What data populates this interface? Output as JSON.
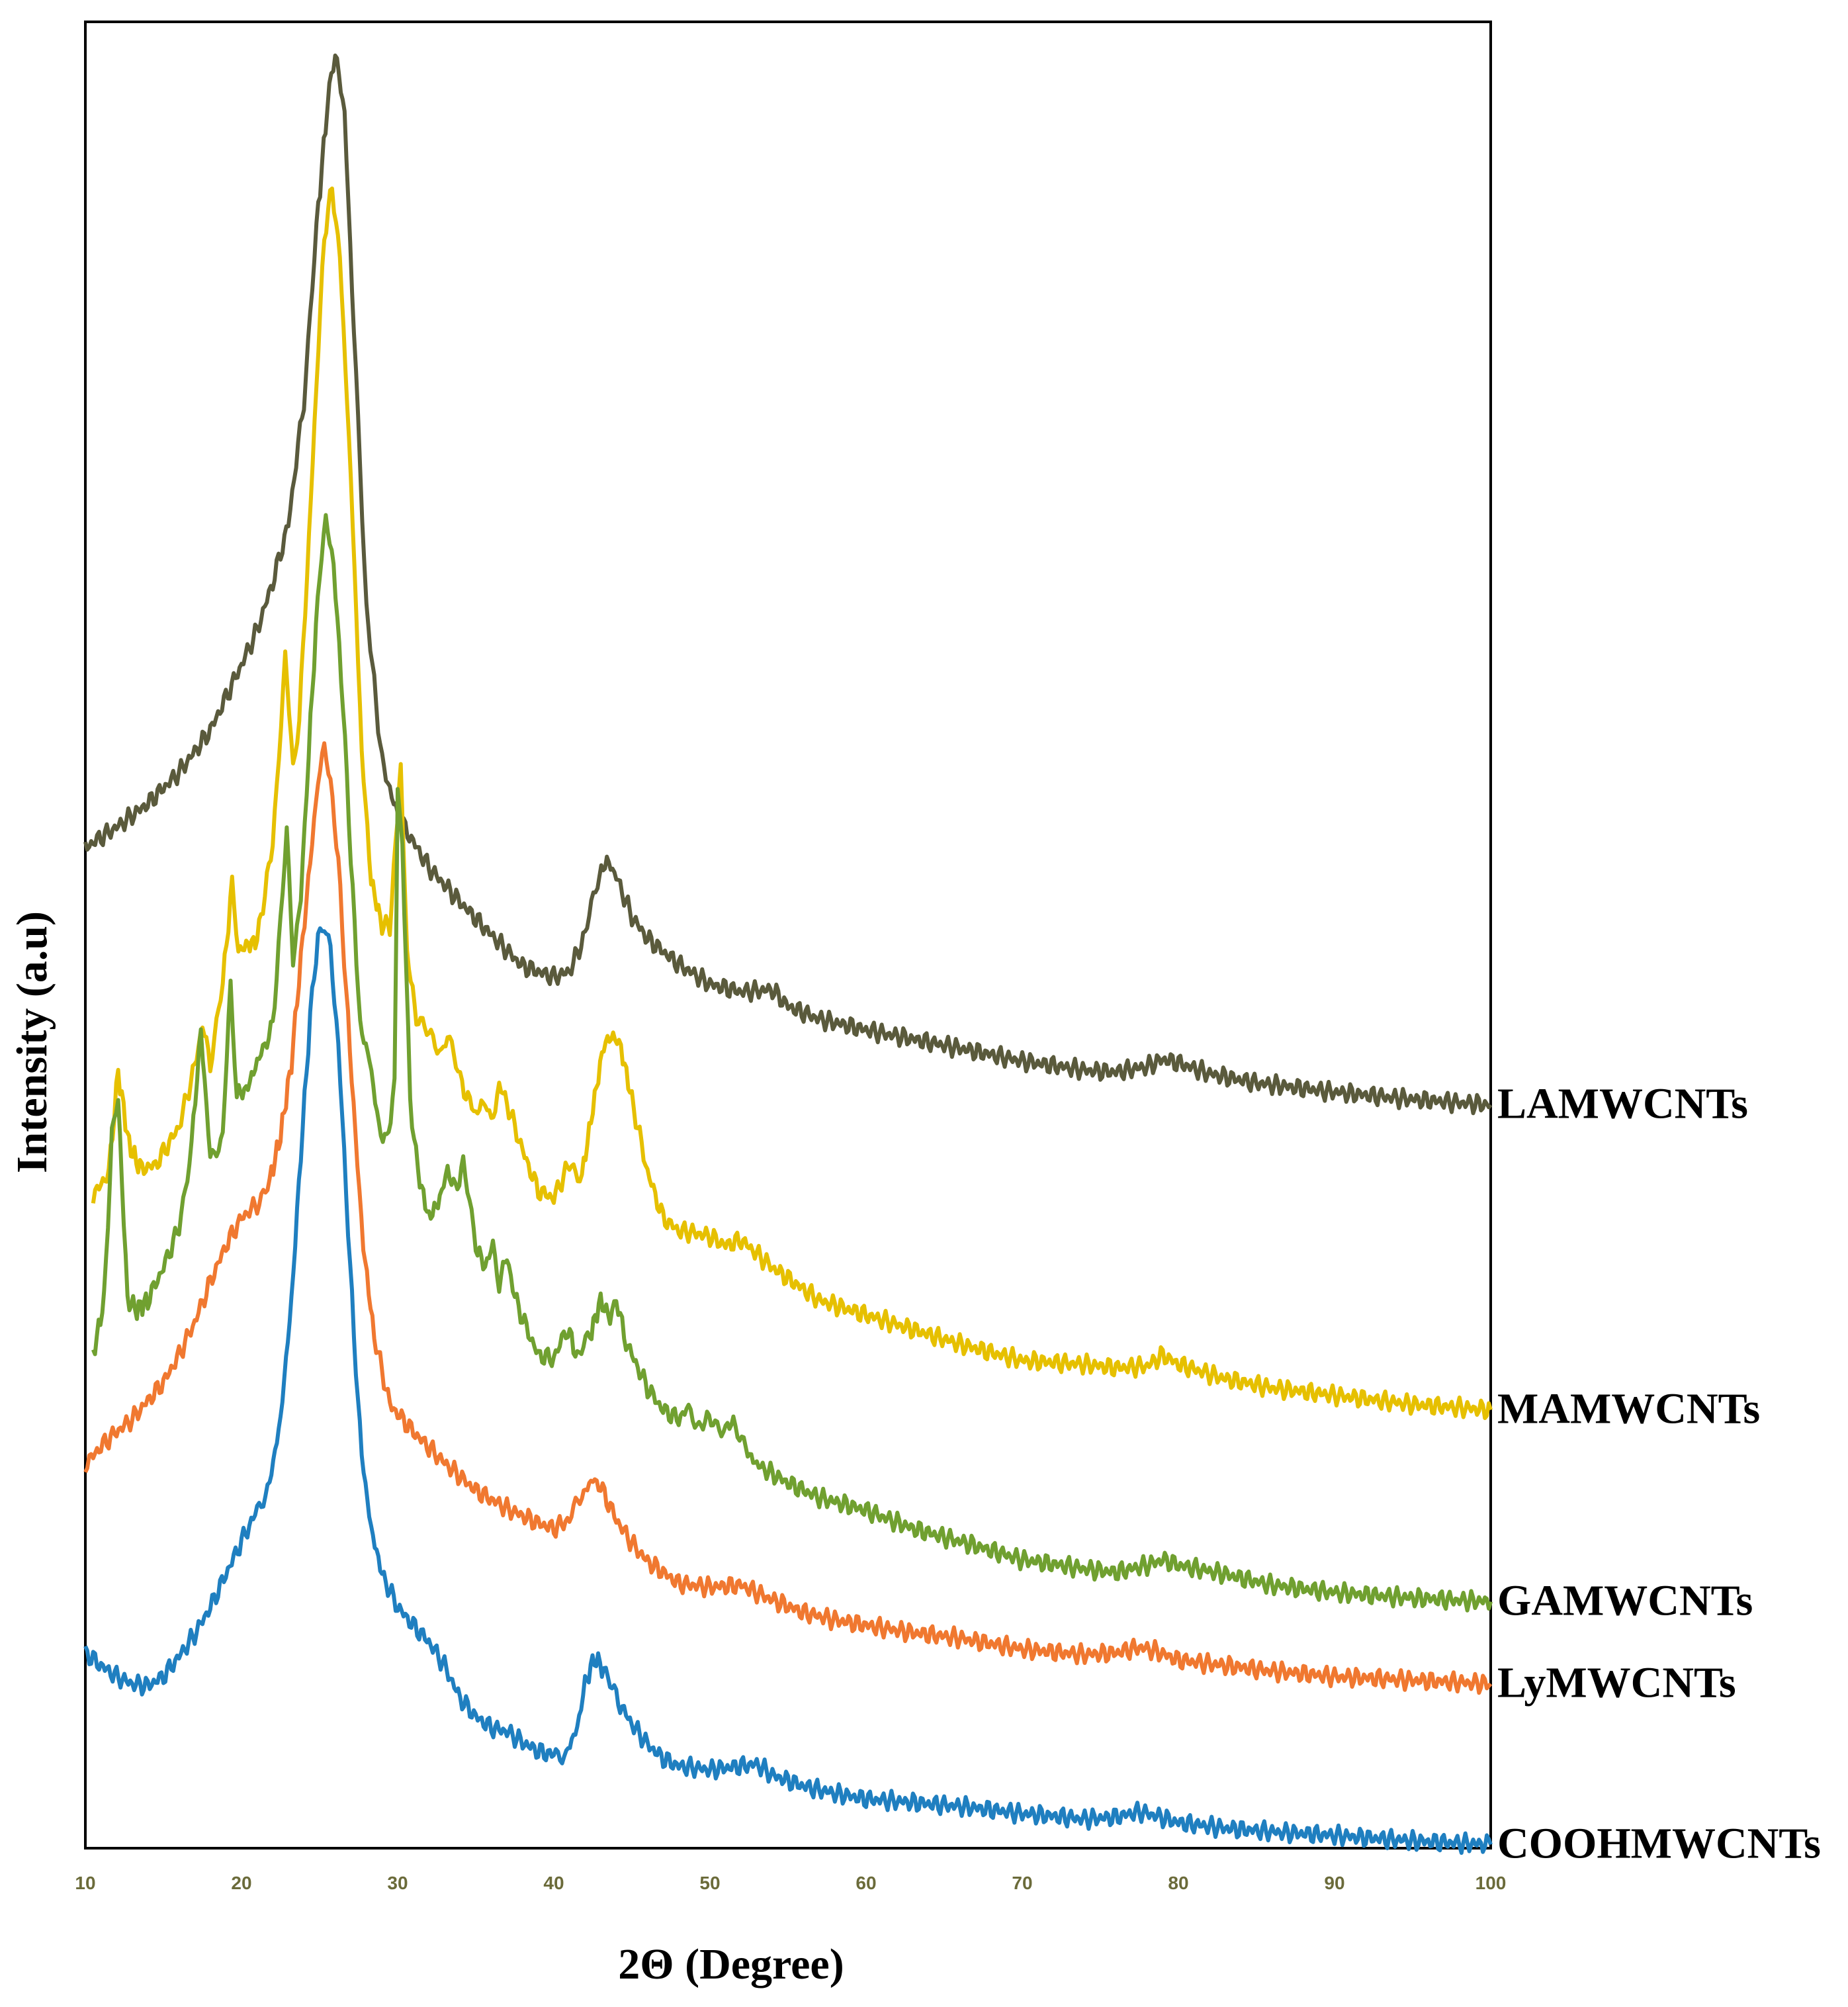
{
  "chart_data": {
    "type": "line",
    "title": "",
    "xlabel": "2Θ (Degree)",
    "ylabel": "Intensity (a.u)",
    "xlim": [
      10,
      100
    ],
    "ylim": [
      0,
      1
    ],
    "xticks": [
      10,
      20,
      30,
      40,
      50,
      60,
      70,
      80,
      90,
      100
    ],
    "grid": false,
    "legend": "labels at right end of each curve",
    "series": [
      {
        "name": "LAMWCNTs",
        "color": "#5a5a3c",
        "x": [
          10,
          12,
          14,
          16,
          18,
          20,
          21,
          22,
          23,
          24,
          24.8,
          25.5,
          26,
          26.6,
          27.2,
          28,
          29,
          30,
          32,
          34,
          36,
          38,
          40,
          41,
          42,
          42.8,
          43.4,
          44,
          45,
          46,
          48,
          50,
          52,
          54,
          55,
          57,
          60,
          63,
          66,
          70,
          74,
          76,
          78,
          79,
          80,
          82,
          85,
          90,
          95,
          100
        ],
        "y": [
          0.548,
          0.559,
          0.572,
          0.589,
          0.612,
          0.648,
          0.667,
          0.693,
          0.725,
          0.793,
          0.887,
          0.954,
          0.984,
          0.95,
          0.83,
          0.68,
          0.595,
          0.565,
          0.537,
          0.518,
          0.5,
          0.483,
          0.477,
          0.48,
          0.5,
          0.53,
          0.541,
          0.532,
          0.51,
          0.498,
          0.484,
          0.473,
          0.469,
          0.47,
          0.461,
          0.454,
          0.448,
          0.443,
          0.438,
          0.431,
          0.426,
          0.425,
          0.428,
          0.432,
          0.43,
          0.424,
          0.419,
          0.414,
          0.41,
          0.407
        ]
      },
      {
        "name": "MAMWCNTs",
        "color": "#e6c000",
        "x": [
          10.5,
          11.5,
          12.1,
          12.8,
          13.5,
          14.5,
          16,
          17,
          17.5,
          18,
          18.8,
          19.4,
          19.8,
          20.3,
          21,
          22,
          22.8,
          23.3,
          23.7,
          24.2,
          24.8,
          25.3,
          25.8,
          26.3,
          27,
          27.7,
          28.3,
          29,
          29.5,
          30,
          30.2,
          30.6,
          31.2,
          32,
          32.8,
          33.2,
          34,
          35,
          35.6,
          36,
          36.5,
          37,
          38,
          39,
          40,
          41,
          41.8,
          42.5,
          43.2,
          43.8,
          44.3,
          45,
          46,
          47,
          48,
          49,
          50,
          51,
          52,
          54,
          57,
          60,
          63,
          66,
          70,
          74,
          76,
          78,
          79,
          80,
          83,
          86,
          90,
          95,
          100
        ],
        "y": [
          0.357,
          0.37,
          0.425,
          0.385,
          0.372,
          0.374,
          0.395,
          0.428,
          0.451,
          0.43,
          0.474,
          0.528,
          0.492,
          0.494,
          0.497,
          0.55,
          0.652,
          0.593,
          0.619,
          0.697,
          0.801,
          0.883,
          0.909,
          0.872,
          0.751,
          0.6,
          0.53,
          0.505,
          0.505,
          0.565,
          0.595,
          0.49,
          0.455,
          0.445,
          0.436,
          0.448,
          0.42,
          0.402,
          0.41,
          0.395,
          0.418,
          0.408,
          0.382,
          0.36,
          0.356,
          0.375,
          0.368,
          0.405,
          0.44,
          0.445,
          0.438,
          0.41,
          0.37,
          0.345,
          0.338,
          0.337,
          0.335,
          0.33,
          0.333,
          0.318,
          0.3,
          0.292,
          0.284,
          0.276,
          0.267,
          0.265,
          0.263,
          0.264,
          0.27,
          0.265,
          0.257,
          0.252,
          0.248,
          0.243,
          0.24
        ]
      },
      {
        "name": "GAMWCNTs",
        "color": "#70a030",
        "x": [
          10.5,
          11.2,
          11.7,
          12.1,
          12.7,
          13.3,
          14,
          15,
          16,
          16.8,
          17.4,
          18,
          18.8,
          19.3,
          19.7,
          20.3,
          21,
          22,
          22.5,
          22.9,
          23.3,
          23.8,
          24.3,
          25,
          25.4,
          25.9,
          26.5,
          27,
          27.6,
          28.2,
          28.8,
          29.3,
          29.8,
          30,
          30.3,
          30.8,
          31.3,
          32,
          32.7,
          33.2,
          33.7,
          34.2,
          35,
          35.6,
          36.1,
          36.5,
          37,
          37.5,
          38,
          39,
          40,
          40.9,
          41.5,
          42.3,
          43,
          43.6,
          44,
          44.5,
          45,
          46,
          47,
          48,
          48.5,
          49.3,
          50.2,
          51,
          51.5,
          52.3,
          53,
          55,
          57,
          60,
          63,
          66,
          70,
          74,
          76,
          78,
          79,
          80,
          83,
          86,
          90,
          95,
          100
        ],
        "y": [
          0.27,
          0.3,
          0.39,
          0.41,
          0.3,
          0.295,
          0.3,
          0.318,
          0.34,
          0.385,
          0.448,
          0.378,
          0.39,
          0.474,
          0.413,
          0.415,
          0.43,
          0.45,
          0.508,
          0.555,
          0.487,
          0.52,
          0.6,
          0.7,
          0.727,
          0.703,
          0.626,
          0.543,
          0.45,
          0.432,
          0.395,
          0.386,
          0.418,
          0.575,
          0.55,
          0.41,
          0.37,
          0.345,
          0.355,
          0.372,
          0.36,
          0.375,
          0.33,
          0.318,
          0.33,
          0.31,
          0.324,
          0.302,
          0.29,
          0.27,
          0.268,
          0.285,
          0.268,
          0.28,
          0.3,
          0.29,
          0.302,
          0.28,
          0.27,
          0.252,
          0.24,
          0.235,
          0.24,
          0.232,
          0.235,
          0.228,
          0.235,
          0.218,
          0.21,
          0.2,
          0.192,
          0.185,
          0.175,
          0.168,
          0.158,
          0.153,
          0.151,
          0.155,
          0.158,
          0.155,
          0.15,
          0.144,
          0.14,
          0.137,
          0.135
        ]
      },
      {
        "name": "LyMWCNTs",
        "color": "#f07830",
        "x": [
          10,
          11,
          12,
          13,
          14,
          15,
          16,
          17,
          18,
          19,
          20,
          21,
          21.8,
          22.5,
          23.2,
          23.8,
          24.4,
          24.9,
          25.3,
          25.7,
          26.2,
          26.7,
          27.3,
          27.8,
          28.5,
          29.5,
          31,
          33,
          35,
          37,
          39,
          40,
          41,
          41.8,
          42.5,
          43,
          44,
          45,
          46,
          47,
          48,
          50,
          52,
          54,
          56,
          58,
          60,
          63,
          66,
          70,
          74,
          76,
          77.5,
          78.5,
          80,
          83,
          86,
          90,
          95,
          100
        ],
        "y": [
          0.21,
          0.22,
          0.228,
          0.235,
          0.245,
          0.255,
          0.27,
          0.288,
          0.31,
          0.33,
          0.345,
          0.353,
          0.365,
          0.39,
          0.43,
          0.487,
          0.54,
          0.585,
          0.6,
          0.585,
          0.54,
          0.47,
          0.39,
          0.33,
          0.28,
          0.243,
          0.228,
          0.211,
          0.196,
          0.186,
          0.178,
          0.175,
          0.18,
          0.193,
          0.202,
          0.198,
          0.18,
          0.167,
          0.157,
          0.151,
          0.145,
          0.143,
          0.144,
          0.136,
          0.129,
          0.125,
          0.122,
          0.118,
          0.115,
          0.109,
          0.106,
          0.107,
          0.11,
          0.108,
          0.103,
          0.1,
          0.097,
          0.094,
          0.092,
          0.09
        ]
      },
      {
        "name": "COOHMWCNTs",
        "color": "#1f7fc0",
        "x": [
          10,
          11,
          12,
          13,
          14,
          15,
          16,
          17,
          18,
          19,
          20,
          21,
          21.8,
          22.5,
          23.2,
          23.8,
          24.4,
          24.9,
          25.3,
          25.7,
          26.2,
          26.7,
          27.2,
          27.7,
          28.3,
          29,
          30,
          31,
          32,
          33,
          34,
          35,
          36,
          37,
          38,
          39,
          40,
          40.8,
          41.5,
          42,
          42.6,
          43.2,
          44,
          45,
          46,
          47,
          48,
          50,
          52,
          53,
          54,
          56,
          58,
          60,
          63,
          66,
          70,
          74,
          76,
          77.5,
          78.5,
          80,
          83,
          86,
          90,
          95,
          100
        ],
        "y": [
          0.107,
          0.1,
          0.094,
          0.09,
          0.089,
          0.094,
          0.105,
          0.117,
          0.132,
          0.15,
          0.168,
          0.185,
          0.2,
          0.235,
          0.3,
          0.38,
          0.455,
          0.5,
          0.505,
          0.49,
          0.44,
          0.36,
          0.28,
          0.215,
          0.175,
          0.15,
          0.132,
          0.122,
          0.113,
          0.1,
          0.082,
          0.072,
          0.066,
          0.064,
          0.058,
          0.053,
          0.051,
          0.052,
          0.066,
          0.09,
          0.104,
          0.098,
          0.082,
          0.068,
          0.057,
          0.049,
          0.045,
          0.043,
          0.045,
          0.046,
          0.04,
          0.034,
          0.03,
          0.027,
          0.025,
          0.023,
          0.019,
          0.016,
          0.017,
          0.02,
          0.018,
          0.014,
          0.011,
          0.009,
          0.007,
          0.004,
          0.002
        ]
      }
    ]
  }
}
